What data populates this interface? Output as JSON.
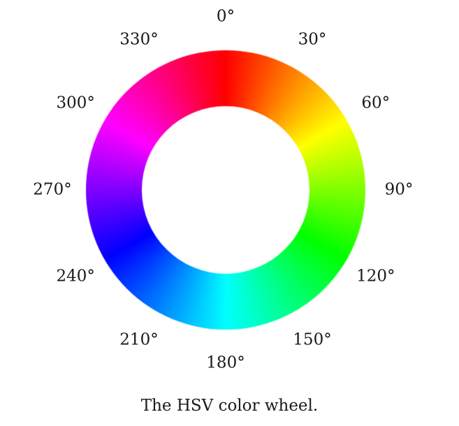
{
  "figure": {
    "caption": "The HSV color wheel.",
    "wheel": {
      "saturation": 1,
      "value": 1,
      "hue_at_top": 0,
      "direction": "clockwise"
    },
    "angle_labels": [
      {
        "hue": 0,
        "text": "0°"
      },
      {
        "hue": 30,
        "text": "30°"
      },
      {
        "hue": 60,
        "text": "60°"
      },
      {
        "hue": 90,
        "text": "90°"
      },
      {
        "hue": 120,
        "text": "120°"
      },
      {
        "hue": 150,
        "text": "150°"
      },
      {
        "hue": 180,
        "text": "180°"
      },
      {
        "hue": 210,
        "text": "210°"
      },
      {
        "hue": 240,
        "text": "240°"
      },
      {
        "hue": 270,
        "text": "270°"
      },
      {
        "hue": 300,
        "text": "300°"
      },
      {
        "hue": 330,
        "text": "330°"
      }
    ]
  }
}
